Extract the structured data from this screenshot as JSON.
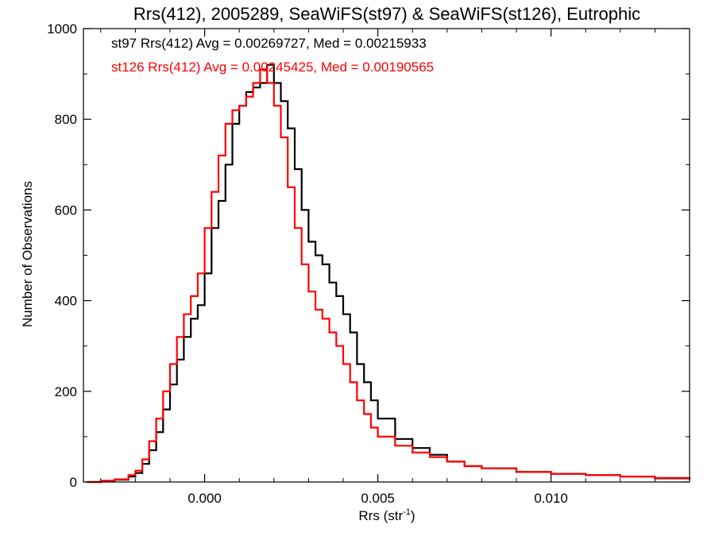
{
  "chart_data": {
    "type": "line",
    "style": "step-histogram",
    "title": "Rrs(412), 2005289, SeaWiFS(st97) & SeaWiFS(st126), Eutrophic",
    "xlabel_main": "Rrs (str",
    "xlabel_sup": "-1",
    "xlabel_close": ")",
    "ylabel": "Number of Observations",
    "xlim": [
      -0.0035,
      0.014
    ],
    "ylim": [
      0,
      1000
    ],
    "x_ticks": [
      {
        "value": 0.0,
        "label": "0.000"
      },
      {
        "value": 0.005,
        "label": "0.005"
      },
      {
        "value": 0.01,
        "label": "0.010"
      }
    ],
    "y_ticks": [
      {
        "value": 0,
        "label": "0"
      },
      {
        "value": 200,
        "label": "200"
      },
      {
        "value": 400,
        "label": "400"
      },
      {
        "value": 600,
        "label": "600"
      },
      {
        "value": 800,
        "label": "800"
      },
      {
        "value": 1000,
        "label": "1000"
      }
    ],
    "grid": false,
    "annotations": [
      {
        "text": "st97 Rrs(412) Avg = 0.00269727, Med = 0.00215933",
        "color": "#000000"
      },
      {
        "text": "st126 Rrs(412) Avg = 0.00245425, Med = 0.00190565",
        "color": "#ff0000"
      }
    ],
    "x": [
      -0.0034,
      -0.003,
      -0.0026,
      -0.0022,
      -0.002,
      -0.0018,
      -0.0016,
      -0.0014,
      -0.0012,
      -0.001,
      -0.0008,
      -0.0006,
      -0.0004,
      -0.0002,
      0.0,
      0.0002,
      0.0004,
      0.0006,
      0.0008,
      0.001,
      0.0012,
      0.0014,
      0.0016,
      0.0018,
      0.002,
      0.0022,
      0.0024,
      0.0026,
      0.0028,
      0.003,
      0.0032,
      0.0034,
      0.0036,
      0.0038,
      0.004,
      0.0042,
      0.0044,
      0.0046,
      0.0048,
      0.005,
      0.0055,
      0.006,
      0.0065,
      0.007,
      0.0075,
      0.008,
      0.009,
      0.01,
      0.011,
      0.012,
      0.013,
      0.014
    ],
    "series": [
      {
        "color": "#000000",
        "values": [
          0,
          2,
          5,
          12,
          20,
          40,
          70,
          110,
          160,
          215,
          270,
          320,
          360,
          390,
          460,
          560,
          620,
          700,
          790,
          830,
          860,
          870,
          880,
          920,
          880,
          840,
          780,
          690,
          600,
          530,
          500,
          480,
          440,
          410,
          370,
          330,
          260,
          220,
          180,
          140,
          95,
          75,
          60,
          45,
          35,
          30,
          22,
          18,
          15,
          12,
          8,
          5
        ]
      },
      {
        "color": "#ff0000",
        "values": [
          0,
          3,
          6,
          15,
          25,
          50,
          90,
          140,
          200,
          260,
          320,
          370,
          410,
          460,
          560,
          640,
          720,
          790,
          820,
          830,
          850,
          880,
          910,
          880,
          830,
          760,
          650,
          560,
          480,
          420,
          380,
          360,
          330,
          300,
          260,
          220,
          180,
          150,
          120,
          100,
          80,
          65,
          55,
          45,
          35,
          30,
          22,
          18,
          15,
          12,
          9,
          6
        ]
      }
    ]
  }
}
